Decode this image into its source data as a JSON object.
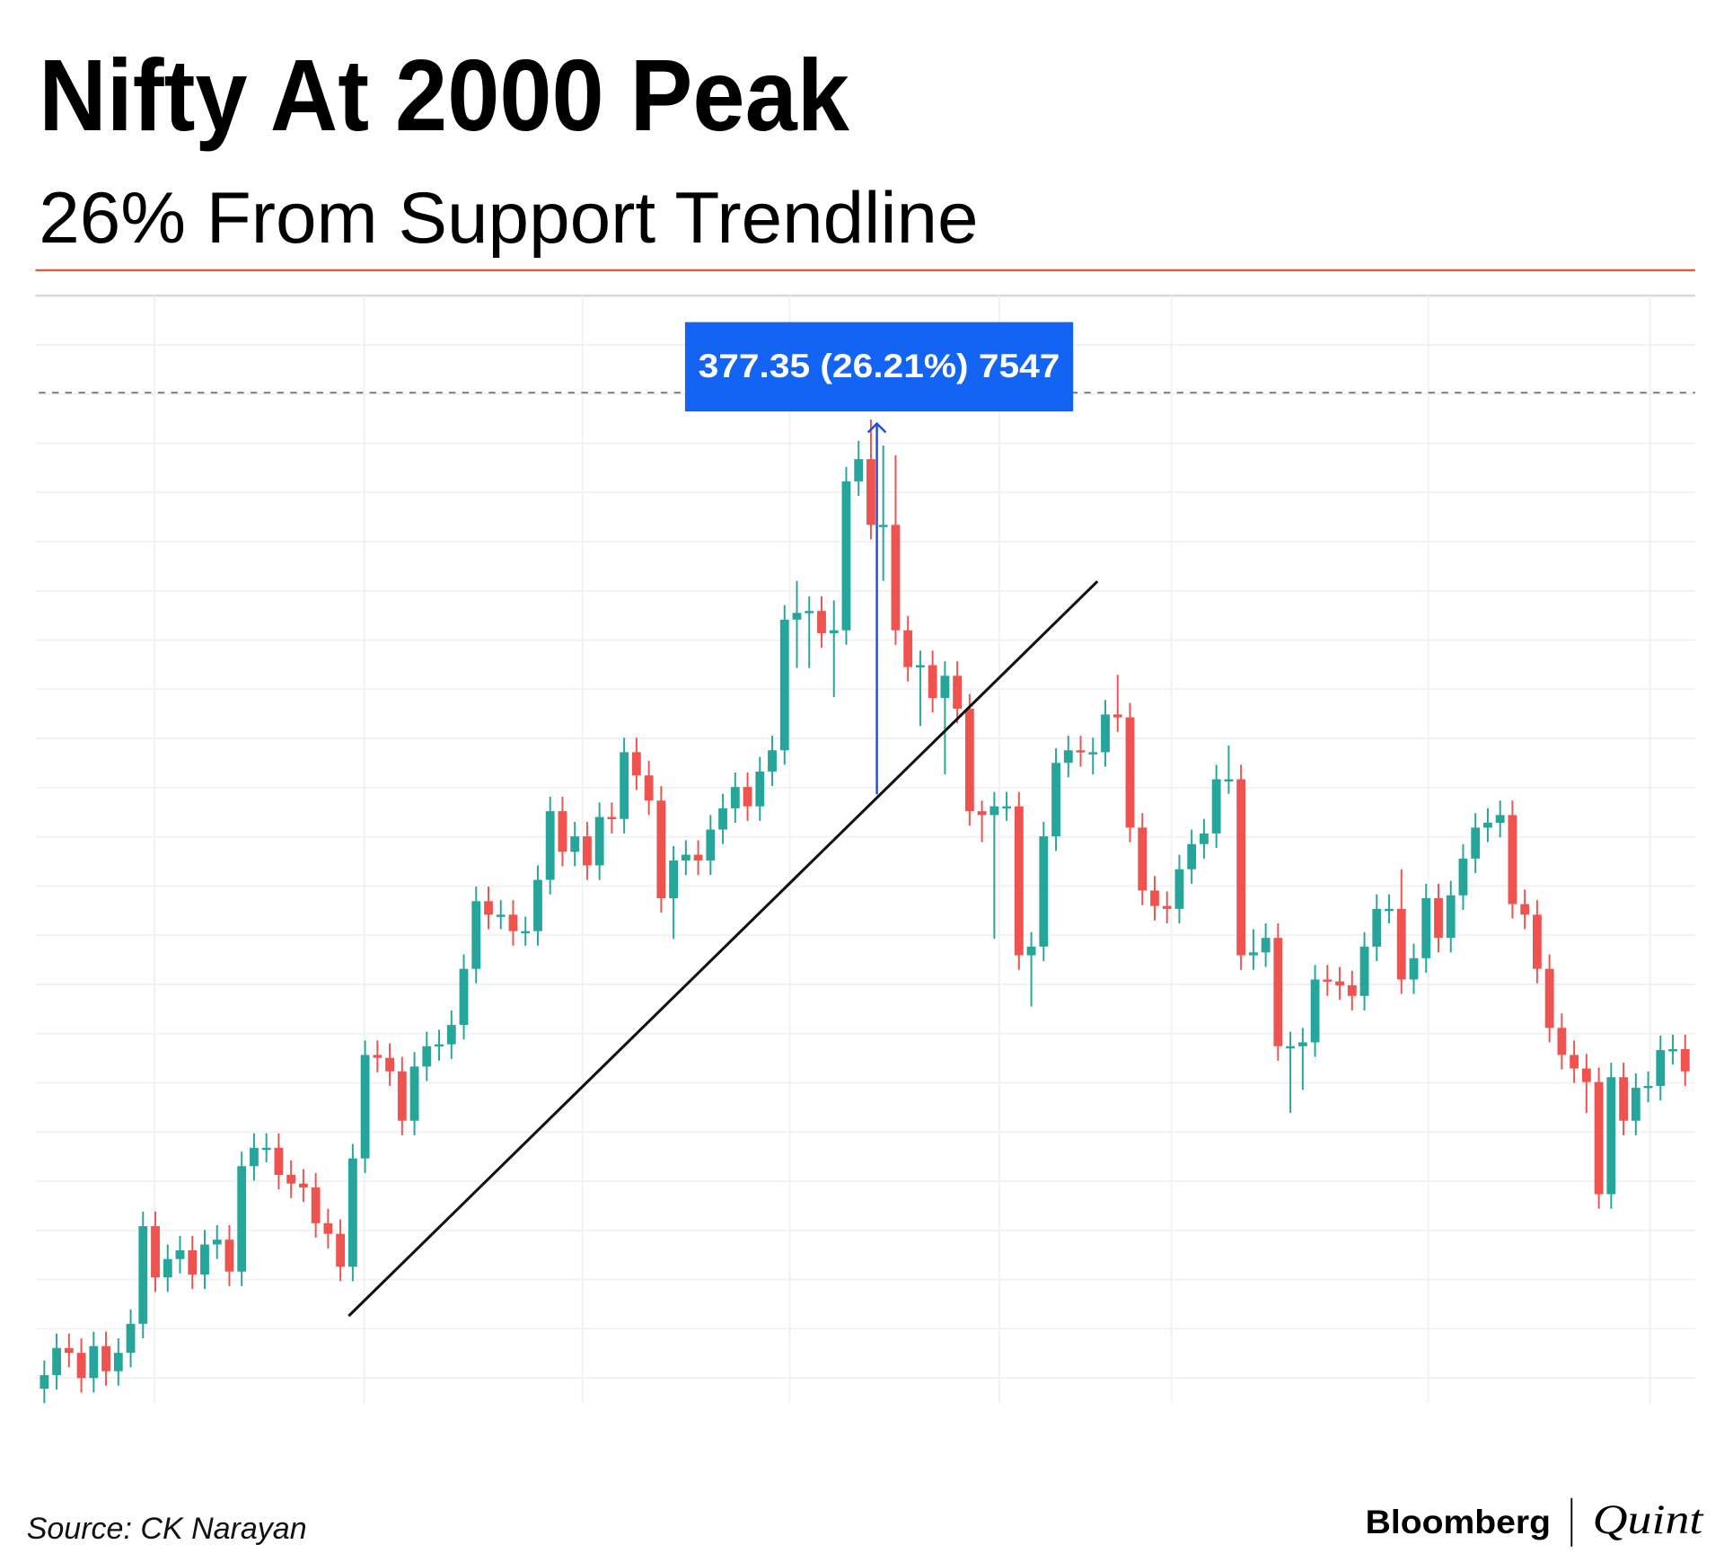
{
  "chart_data": {
    "type": "candlestick",
    "title": "Nifty At 2000 Peak",
    "subtitle": "26% From Support Trendline",
    "annotation": "377.35 (26.21%) 7547",
    "source": "Source: CK Narayan",
    "brand": [
      "Bloomberg",
      "Quint"
    ],
    "up_color": "#26a69a",
    "down_color": "#ef5350",
    "ylim": [
      800,
      1945
    ],
    "open": [
      815,
      829,
      857,
      852,
      826,
      859,
      833,
      852,
      882,
      983,
      930,
      949,
      958,
      933,
      964,
      969,
      936,
      1045,
      1064,
      1064,
      1036,
      1027,
      1023,
      986,
      975,
      941,
      1053,
      1160,
      1157,
      1143,
      1092,
      1148,
      1169,
      1171,
      1191,
      1249,
      1319,
      1305,
      1305,
      1288,
      1288,
      1341,
      1412,
      1370,
      1386,
      1356,
      1406,
      1404,
      1473,
      1449,
      1423,
      1322,
      1361,
      1367,
      1361,
      1393,
      1415,
      1437,
      1417,
      1453,
      1475,
      1610,
      1617,
      1619,
      1596,
      1599,
      1753,
      1776,
      1708,
      1708,
      1599,
      1561,
      1563,
      1529,
      1552,
      1518,
      1412,
      1408,
      1417,
      1417,
      1263,
      1272,
      1386,
      1462,
      1475,
      1473,
      1473,
      1512,
      1509,
      1395,
      1330,
      1314,
      1311,
      1352,
      1378,
      1389,
      1445,
      1445,
      1263,
      1266,
      1281,
      1169,
      1169,
      1173,
      1238,
      1236,
      1232,
      1221,
      1272,
      1311,
      1311,
      1238,
      1260,
      1322,
      1281,
      1325,
      1363,
      1395,
      1400,
      1408,
      1316,
      1305,
      1249,
      1188,
      1160,
      1146,
      1132,
      1016,
      1137,
      1092,
      1126,
      1128,
      1165,
      1166
    ],
    "high": [
      844,
      872,
      872,
      867,
      874,
      874,
      867,
      897,
      998,
      998,
      964,
      973,
      973,
      979,
      984,
      984,
      1060,
      1079,
      1079,
      1079,
      1051,
      1042,
      1038,
      1001,
      990,
      1068,
      1175,
      1175,
      1172,
      1158,
      1163,
      1184,
      1186,
      1206,
      1264,
      1334,
      1334,
      1320,
      1320,
      1303,
      1356,
      1427,
      1427,
      1401,
      1401,
      1421,
      1421,
      1488,
      1488,
      1464,
      1438,
      1376,
      1382,
      1382,
      1408,
      1430,
      1452,
      1452,
      1468,
      1490,
      1625,
      1650,
      1634,
      1634,
      1630,
      1768,
      1795,
      1817,
      1790,
      1780,
      1614,
      1578,
      1578,
      1567,
      1567,
      1533,
      1423,
      1432,
      1432,
      1432,
      1287,
      1401,
      1477,
      1490,
      1490,
      1488,
      1527,
      1553,
      1524,
      1410,
      1345,
      1329,
      1367,
      1393,
      1404,
      1460,
      1480,
      1460,
      1290,
      1296,
      1296,
      1184,
      1188,
      1253,
      1253,
      1251,
      1247,
      1287,
      1326,
      1326,
      1352,
      1275,
      1337,
      1337,
      1340,
      1378,
      1410,
      1415,
      1423,
      1423,
      1331,
      1320,
      1264,
      1203,
      1175,
      1161,
      1147,
      1152,
      1152,
      1141,
      1143,
      1180,
      1181,
      1181
    ],
    "low": [
      800,
      814,
      837,
      811,
      811,
      818,
      818,
      837,
      867,
      915,
      915,
      934,
      918,
      918,
      949,
      921,
      921,
      1030,
      1049,
      1021,
      1012,
      1008,
      971,
      960,
      926,
      926,
      1038,
      1142,
      1128,
      1077,
      1077,
      1133,
      1154,
      1156,
      1176,
      1234,
      1290,
      1290,
      1273,
      1273,
      1273,
      1326,
      1355,
      1355,
      1341,
      1341,
      1389,
      1389,
      1434,
      1408,
      1307,
      1280,
      1346,
      1346,
      1346,
      1378,
      1400,
      1402,
      1402,
      1438,
      1460,
      1560,
      1560,
      1581,
      1530,
      1584,
      1738,
      1693,
      1650,
      1584,
      1546,
      1500,
      1514,
      1450,
      1503,
      1397,
      1380,
      1280,
      1402,
      1248,
      1210,
      1257,
      1371,
      1447,
      1458,
      1450,
      1458,
      1494,
      1380,
      1315,
      1299,
      1296,
      1296,
      1337,
      1363,
      1374,
      1430,
      1248,
      1248,
      1251,
      1154,
      1100,
      1124,
      1158,
      1221,
      1217,
      1206,
      1206,
      1257,
      1296,
      1223,
      1223,
      1245,
      1266,
      1266,
      1310,
      1348,
      1380,
      1385,
      1301,
      1290,
      1234,
      1173,
      1145,
      1131,
      1100,
      1001,
      1001,
      1077,
      1077,
      1111,
      1113,
      1150,
      1128
    ],
    "close": [
      829,
      857,
      852,
      826,
      859,
      833,
      852,
      882,
      983,
      930,
      949,
      958,
      933,
      964,
      969,
      936,
      1045,
      1064,
      1064,
      1036,
      1027,
      1023,
      986,
      975,
      941,
      1053,
      1160,
      1157,
      1143,
      1092,
      1148,
      1169,
      1171,
      1191,
      1249,
      1319,
      1305,
      1305,
      1288,
      1288,
      1341,
      1412,
      1370,
      1386,
      1356,
      1406,
      1404,
      1473,
      1449,
      1423,
      1322,
      1361,
      1367,
      1361,
      1393,
      1415,
      1437,
      1417,
      1453,
      1475,
      1610,
      1617,
      1619,
      1596,
      1599,
      1753,
      1776,
      1708,
      1708,
      1599,
      1561,
      1563,
      1529,
      1552,
      1518,
      1412,
      1408,
      1417,
      1417,
      1263,
      1272,
      1386,
      1462,
      1475,
      1473,
      1473,
      1512,
      1509,
      1395,
      1330,
      1314,
      1311,
      1352,
      1378,
      1389,
      1445,
      1445,
      1263,
      1266,
      1281,
      1169,
      1169,
      1173,
      1238,
      1236,
      1232,
      1221,
      1272,
      1311,
      1311,
      1238,
      1260,
      1322,
      1281,
      1325,
      1363,
      1395,
      1400,
      1408,
      1316,
      1305,
      1249,
      1188,
      1160,
      1146,
      1132,
      1016,
      1137,
      1092,
      1126,
      1128,
      1165,
      1166,
      1143
    ]
  }
}
